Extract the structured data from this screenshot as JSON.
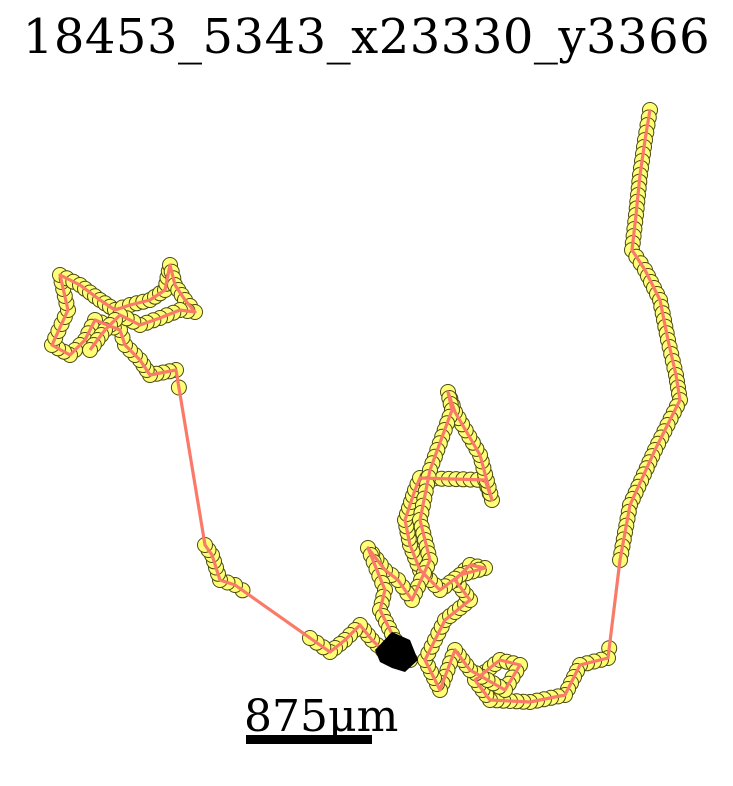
{
  "title": "18453_5343_x23330_y3366",
  "scale_bar": {
    "label": "875µm"
  },
  "colors": {
    "point_fill": "#ffff77",
    "point_stroke": "#4a4a10",
    "path": "#fa7a6a",
    "start_marker": "#000000"
  },
  "track": {
    "description_type": "cell-migration-trajectory",
    "point_count_visible": "many"
  }
}
